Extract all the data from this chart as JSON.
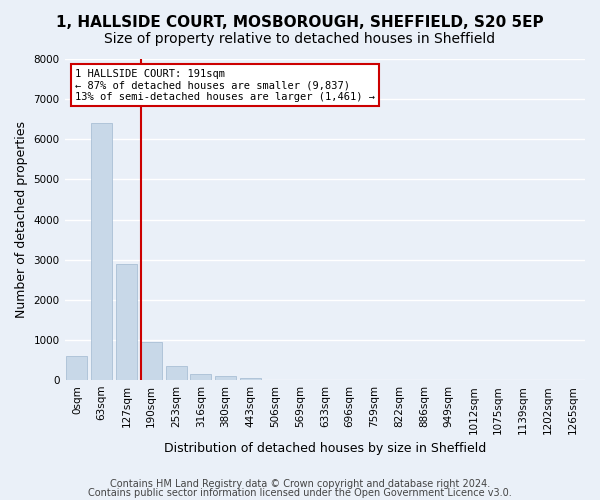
{
  "title_line1": "1, HALLSIDE COURT, MOSBOROUGH, SHEFFIELD, S20 5EP",
  "title_line2": "Size of property relative to detached houses in Sheffield",
  "xlabel": "Distribution of detached houses by size in Sheffield",
  "ylabel": "Number of detached properties",
  "footer_line1": "Contains HM Land Registry data © Crown copyright and database right 2024.",
  "footer_line2": "Contains public sector information licensed under the Open Government Licence v3.0.",
  "bin_labels": [
    "0sqm",
    "63sqm",
    "127sqm",
    "190sqm",
    "253sqm",
    "316sqm",
    "380sqm",
    "443sqm",
    "506sqm",
    "569sqm",
    "633sqm",
    "696sqm",
    "759sqm",
    "822sqm",
    "886sqm",
    "949sqm",
    "1012sqm",
    "1075sqm",
    "1139sqm",
    "1202sqm",
    "1265sqm"
  ],
  "bar_values": [
    600,
    6400,
    2900,
    950,
    350,
    150,
    90,
    60,
    10,
    5,
    3,
    2,
    1,
    1,
    0,
    0,
    0,
    0,
    0,
    0,
    0
  ],
  "bar_color": "#c8d8e8",
  "bar_edgecolor": "#a0b8d0",
  "marker_bin_index": 3,
  "marker_line_color": "#cc0000",
  "annotation_text": "1 HALLSIDE COURT: 191sqm\n← 87% of detached houses are smaller (9,837)\n13% of semi-detached houses are larger (1,461) →",
  "annotation_box_edgecolor": "#cc0000",
  "annotation_box_facecolor": "white",
  "ylim": [
    0,
    8000
  ],
  "yticks": [
    0,
    1000,
    2000,
    3000,
    4000,
    5000,
    6000,
    7000,
    8000
  ],
  "bg_color": "#eaf0f8",
  "axes_bg_color": "#eaf0f8",
  "grid_color": "white",
  "title_fontsize": 11,
  "subtitle_fontsize": 10,
  "axis_label_fontsize": 9,
  "tick_fontsize": 7.5,
  "footer_fontsize": 7
}
